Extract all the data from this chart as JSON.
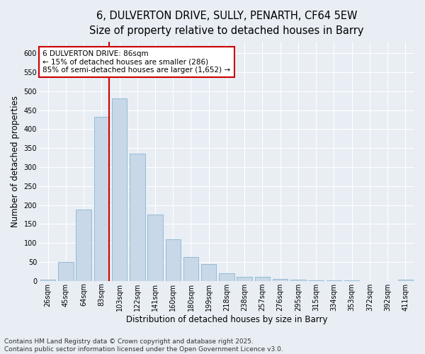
{
  "title_line1": "6, DULVERTON DRIVE, SULLY, PENARTH, CF64 5EW",
  "title_line2": "Size of property relative to detached houses in Barry",
  "xlabel": "Distribution of detached houses by size in Barry",
  "ylabel": "Number of detached properties",
  "categories": [
    "26sqm",
    "45sqm",
    "64sqm",
    "83sqm",
    "103sqm",
    "122sqm",
    "141sqm",
    "160sqm",
    "180sqm",
    "199sqm",
    "218sqm",
    "238sqm",
    "257sqm",
    "276sqm",
    "295sqm",
    "315sqm",
    "334sqm",
    "353sqm",
    "372sqm",
    "392sqm",
    "411sqm"
  ],
  "values": [
    3,
    50,
    187,
    432,
    480,
    335,
    175,
    110,
    62,
    45,
    20,
    10,
    10,
    5,
    4,
    2,
    1,
    1,
    0,
    0,
    3
  ],
  "bar_color": "#c8d8e8",
  "bar_edge_color": "#8ab4d0",
  "vline_x_index": 3,
  "vline_color": "#cc0000",
  "annotation_text": "6 DULVERTON DRIVE: 86sqm\n← 15% of detached houses are smaller (286)\n85% of semi-detached houses are larger (1,652) →",
  "annotation_box_facecolor": "#ffffff",
  "annotation_box_edgecolor": "#cc0000",
  "annotation_text_color": "#000000",
  "ylim": [
    0,
    630
  ],
  "yticks": [
    0,
    50,
    100,
    150,
    200,
    250,
    300,
    350,
    400,
    450,
    500,
    550,
    600
  ],
  "background_color": "#e8eef4",
  "plot_bg_color": "#e8eef4",
  "footer_text": "Contains HM Land Registry data © Crown copyright and database right 2025.\nContains public sector information licensed under the Open Government Licence v3.0.",
  "grid_color": "#ffffff",
  "title1_fontsize": 10.5,
  "title2_fontsize": 9.5,
  "label_fontsize": 8.5,
  "tick_fontsize": 7,
  "annotation_fontsize": 7.5,
  "footer_fontsize": 6.5
}
